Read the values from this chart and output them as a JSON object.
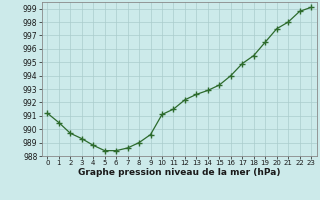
{
  "x": [
    0,
    1,
    2,
    3,
    4,
    5,
    6,
    7,
    8,
    9,
    10,
    11,
    12,
    13,
    14,
    15,
    16,
    17,
    18,
    19,
    20,
    21,
    22,
    23
  ],
  "y": [
    991.2,
    990.5,
    989.7,
    989.3,
    988.8,
    988.4,
    988.4,
    988.6,
    989.0,
    989.6,
    991.1,
    991.5,
    992.2,
    992.6,
    992.9,
    993.3,
    994.0,
    994.9,
    995.5,
    996.5,
    997.5,
    998.0,
    998.8,
    999.1
  ],
  "xlabel": "Graphe pression niveau de la mer (hPa)",
  "line_color": "#2d6b2d",
  "marker_color": "#2d6b2d",
  "bg_color": "#cceaea",
  "grid_color": "#aacccc",
  "ylim_min": 988,
  "ylim_max": 999,
  "xlim_min": -0.5,
  "xlim_max": 23.5,
  "ytick_fontsize": 5.5,
  "xtick_fontsize": 5.0,
  "xlabel_fontsize": 6.5
}
